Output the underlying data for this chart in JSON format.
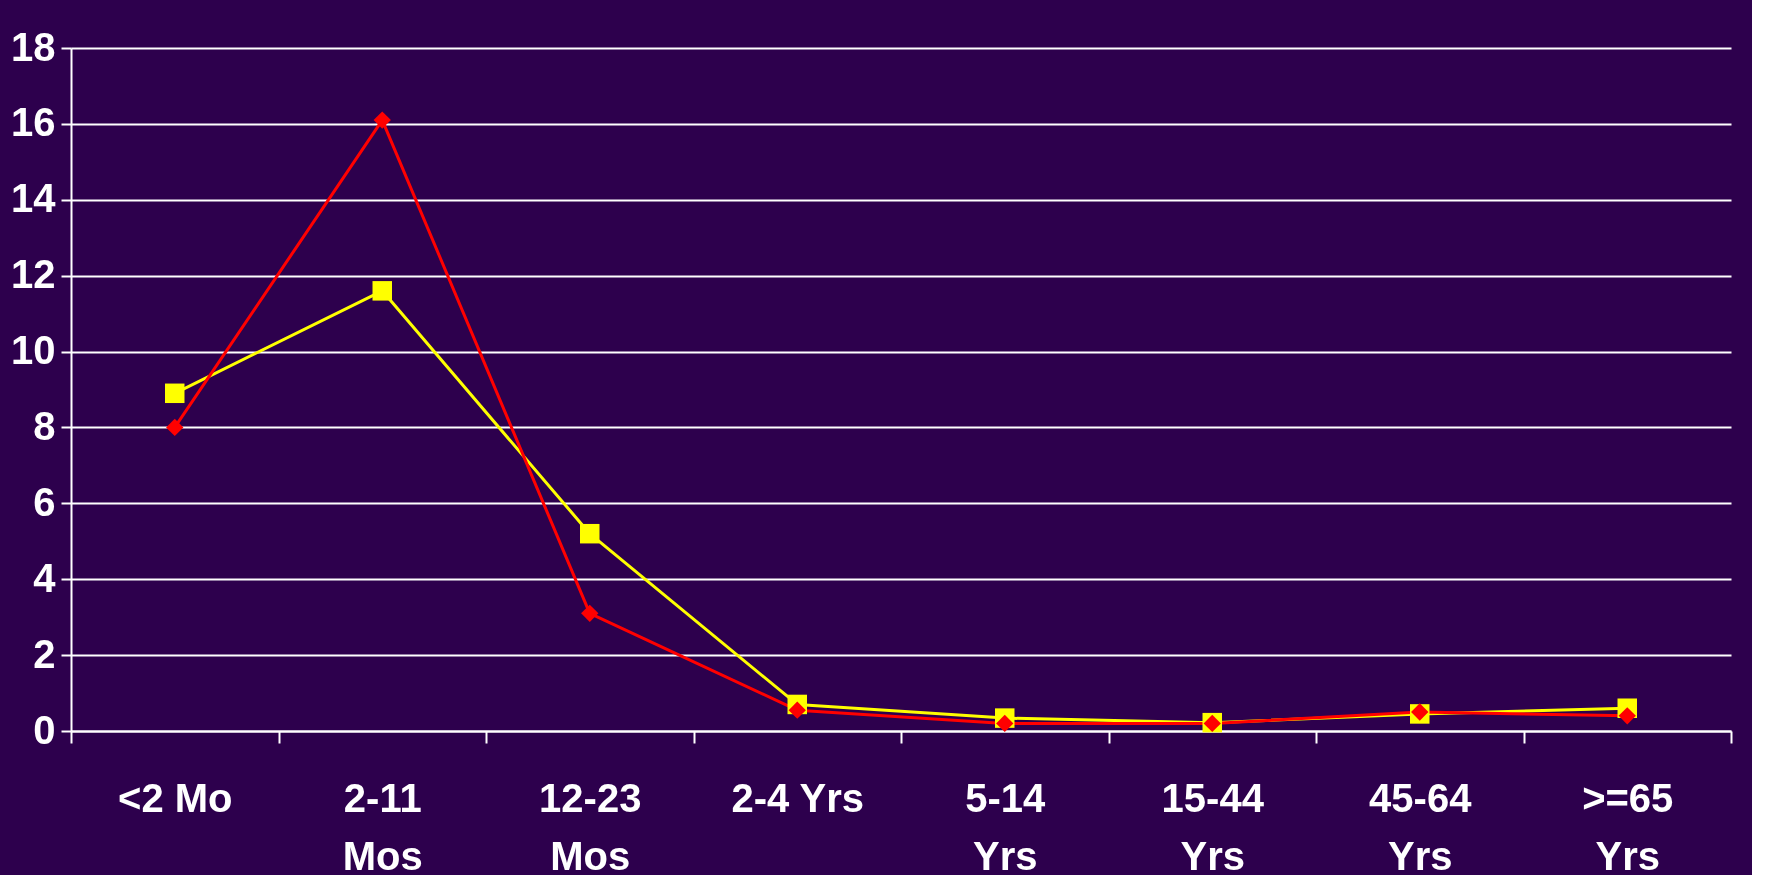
{
  "chart_data": {
    "type": "line",
    "categories": [
      "<2 Mo",
      "2-11\nMos",
      "12-23\nMos",
      "2-4 Yrs",
      "5-14\nYrs",
      "15-44\nYrs",
      "45-64\nYrs",
      ">=65\nYrs"
    ],
    "series": [
      {
        "color": "#ff0000",
        "marker": "diamond",
        "values": [
          8.0,
          16.1,
          3.1,
          0.55,
          0.2,
          0.2,
          0.5,
          0.4
        ]
      },
      {
        "color": "#ffff00",
        "marker": "square",
        "values": [
          8.9,
          11.6,
          5.2,
          0.7,
          0.34,
          0.22,
          0.45,
          0.6
        ]
      }
    ],
    "ylim": [
      0,
      18
    ],
    "yticks": [
      0,
      2,
      4,
      6,
      8,
      10,
      12,
      14,
      16,
      18
    ],
    "grid": "y",
    "line_style": "solid"
  }
}
